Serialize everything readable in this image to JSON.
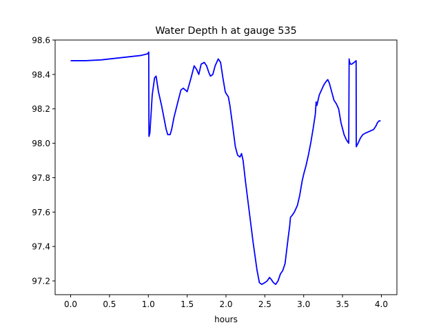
{
  "chart_data": {
    "type": "line",
    "title": "Water Depth h at gauge 535",
    "xlabel": "hours",
    "ylabel": "",
    "xlim": [
      -0.2,
      4.2
    ],
    "ylim": [
      97.12,
      98.6
    ],
    "x_ticks": [
      0.0,
      0.5,
      1.0,
      1.5,
      2.0,
      2.5,
      3.0,
      3.5,
      4.0
    ],
    "x_tick_labels": [
      "0.0",
      "0.5",
      "1.0",
      "1.5",
      "2.0",
      "2.5",
      "3.0",
      "3.5",
      "4.0"
    ],
    "y_ticks": [
      97.2,
      97.4,
      97.6,
      97.8,
      98.0,
      98.2,
      98.4,
      98.6
    ],
    "y_tick_labels": [
      "97.2",
      "97.4",
      "97.6",
      "97.8",
      "98.0",
      "98.2",
      "98.4",
      "98.6"
    ],
    "grid": false,
    "series": [
      {
        "color": "#0000ff",
        "x": [
          0.0,
          0.2,
          0.4,
          0.6,
          0.7,
          0.8,
          0.9,
          0.99,
          1.005,
          1.008,
          1.02,
          1.05,
          1.08,
          1.1,
          1.13,
          1.17,
          1.2,
          1.23,
          1.25,
          1.28,
          1.3,
          1.33,
          1.38,
          1.42,
          1.45,
          1.5,
          1.55,
          1.59,
          1.62,
          1.65,
          1.68,
          1.72,
          1.75,
          1.78,
          1.8,
          1.83,
          1.86,
          1.9,
          1.93,
          1.96,
          1.99,
          2.0,
          2.03,
          2.05,
          2.08,
          2.12,
          2.15,
          2.18,
          2.2,
          2.22,
          2.25,
          2.3,
          2.35,
          2.4,
          2.43,
          2.46,
          2.5,
          2.53,
          2.56,
          2.58,
          2.61,
          2.64,
          2.67,
          2.7,
          2.73,
          2.76,
          2.8,
          2.82,
          2.83,
          2.85,
          2.88,
          2.92,
          2.95,
          2.98,
          3.0,
          3.03,
          3.06,
          3.09,
          3.12,
          3.15,
          3.16,
          3.17,
          3.2,
          3.23,
          3.26,
          3.29,
          3.31,
          3.33,
          3.36,
          3.39,
          3.42,
          3.45,
          3.48,
          3.52,
          3.55,
          3.58,
          3.585,
          3.587,
          3.6,
          3.62,
          3.65,
          3.675,
          3.677,
          3.7,
          3.73,
          3.76,
          3.8,
          3.85,
          3.9,
          3.93,
          3.95,
          3.97,
          3.99
        ],
        "values": [
          98.48,
          98.48,
          98.485,
          98.495,
          98.5,
          98.505,
          98.51,
          98.52,
          98.53,
          98.04,
          98.06,
          98.28,
          98.38,
          98.39,
          98.3,
          98.22,
          98.15,
          98.08,
          98.05,
          98.05,
          98.08,
          98.15,
          98.24,
          98.31,
          98.32,
          98.3,
          98.38,
          98.45,
          98.43,
          98.4,
          98.46,
          98.47,
          98.45,
          98.41,
          98.39,
          98.4,
          98.45,
          98.49,
          98.47,
          98.38,
          98.3,
          98.29,
          98.27,
          98.22,
          98.12,
          97.98,
          97.93,
          97.92,
          97.94,
          97.9,
          97.78,
          97.6,
          97.42,
          97.26,
          97.19,
          97.18,
          97.19,
          97.2,
          97.22,
          97.21,
          97.19,
          97.18,
          97.2,
          97.24,
          97.26,
          97.3,
          97.45,
          97.52,
          97.57,
          97.58,
          97.6,
          97.64,
          97.7,
          97.78,
          97.82,
          97.87,
          97.93,
          98.0,
          98.08,
          98.17,
          98.24,
          98.22,
          98.28,
          98.31,
          98.34,
          98.36,
          98.37,
          98.35,
          98.3,
          98.25,
          98.23,
          98.2,
          98.12,
          98.05,
          98.02,
          98.0,
          98.49,
          98.48,
          98.46,
          98.46,
          98.47,
          98.48,
          97.98,
          98.0,
          98.03,
          98.05,
          98.06,
          98.07,
          98.08,
          98.1,
          98.12,
          98.13,
          98.13
        ]
      }
    ]
  }
}
